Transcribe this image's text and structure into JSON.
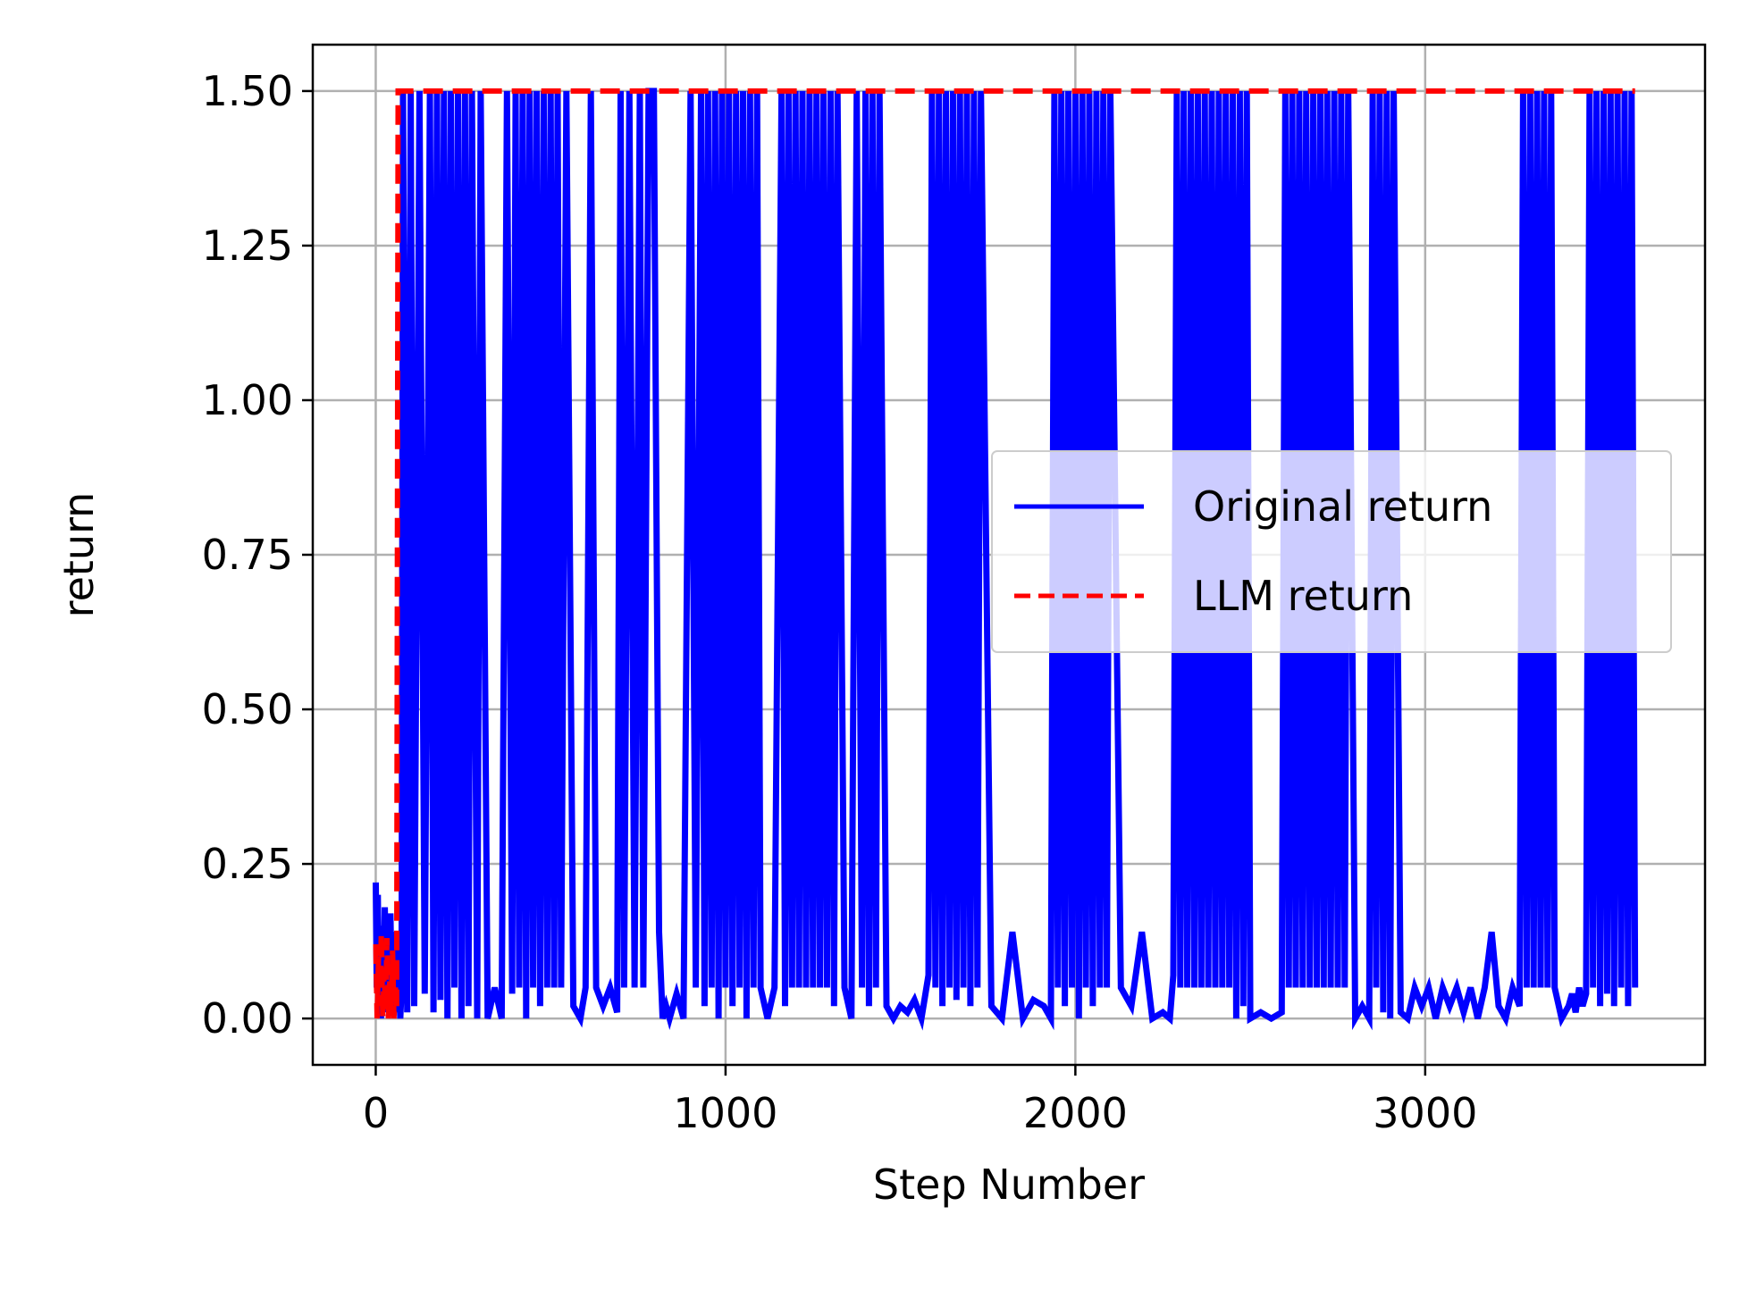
{
  "chart_data": {
    "type": "line",
    "title": "",
    "xlabel": "Step Number",
    "ylabel": "return",
    "xlim": [
      -180,
      3800
    ],
    "ylim": [
      -0.075,
      1.575
    ],
    "xticks": [
      0,
      1000,
      2000,
      3000
    ],
    "xtick_labels": [
      "0",
      "1000",
      "2000",
      "3000"
    ],
    "yticks": [
      0.0,
      0.25,
      0.5,
      0.75,
      1.0,
      1.25,
      1.5
    ],
    "ytick_labels": [
      "0.00",
      "0.25",
      "0.50",
      "0.75",
      "1.00",
      "1.25",
      "1.50"
    ],
    "grid": true,
    "legend_position": "center-right",
    "colors": {
      "original": "#0000ff",
      "llm": "#ff0000",
      "grid": "#b0b0b0"
    },
    "series": [
      {
        "name": "Original return",
        "style": "solid",
        "x": [
          0,
          3,
          6,
          9,
          12,
          15,
          18,
          22,
          26,
          30,
          34,
          38,
          42,
          46,
          50,
          54,
          58,
          62,
          66,
          70,
          74,
          78,
          90,
          100,
          110,
          125,
          140,
          155,
          165,
          175,
          185,
          195,
          205,
          215,
          225,
          235,
          245,
          255,
          265,
          275,
          290,
          300,
          320,
          340,
          360,
          375,
          390,
          400,
          410,
          420,
          430,
          440,
          450,
          460,
          470,
          480,
          490,
          500,
          510,
          520,
          530,
          545,
          565,
          585,
          600,
          615,
          630,
          650,
          670,
          690,
          700,
          710,
          725,
          740,
          755,
          765,
          780,
          795,
          810,
          820,
          830,
          840,
          860,
          880,
          900,
          915,
          930,
          940,
          950,
          960,
          970,
          980,
          990,
          1000,
          1010,
          1020,
          1030,
          1040,
          1050,
          1060,
          1070,
          1080,
          1090,
          1100,
          1120,
          1140,
          1160,
          1170,
          1180,
          1190,
          1200,
          1210,
          1220,
          1230,
          1240,
          1250,
          1260,
          1270,
          1280,
          1290,
          1300,
          1310,
          1320,
          1340,
          1360,
          1375,
          1390,
          1400,
          1410,
          1420,
          1430,
          1440,
          1460,
          1480,
          1500,
          1520,
          1540,
          1560,
          1580,
          1590,
          1600,
          1610,
          1620,
          1630,
          1640,
          1650,
          1660,
          1670,
          1680,
          1690,
          1700,
          1710,
          1720,
          1730,
          1760,
          1790,
          1820,
          1850,
          1880,
          1910,
          1930,
          1940,
          1950,
          1960,
          1970,
          1980,
          1990,
          2000,
          2010,
          2020,
          2030,
          2040,
          2050,
          2060,
          2070,
          2080,
          2090,
          2100,
          2130,
          2160,
          2190,
          2220,
          2250,
          2270,
          2280,
          2290,
          2300,
          2310,
          2320,
          2330,
          2340,
          2350,
          2360,
          2370,
          2380,
          2390,
          2400,
          2410,
          2420,
          2430,
          2440,
          2450,
          2460,
          2470,
          2480,
          2490,
          2500,
          2530,
          2560,
          2590,
          2600,
          2610,
          2620,
          2630,
          2640,
          2650,
          2660,
          2670,
          2680,
          2690,
          2700,
          2710,
          2720,
          2730,
          2740,
          2750,
          2760,
          2770,
          2780,
          2800,
          2820,
          2840,
          2850,
          2860,
          2870,
          2880,
          2890,
          2900,
          2910,
          2930,
          2950,
          2970,
          2990,
          3010,
          3030,
          3050,
          3070,
          3090,
          3110,
          3130,
          3150,
          3170,
          3190,
          3210,
          3230,
          3250,
          3270,
          3280,
          3290,
          3300,
          3310,
          3320,
          3330,
          3340,
          3350,
          3360,
          3370,
          3390,
          3410,
          3420,
          3430,
          3440,
          3450,
          3460,
          3470,
          3480,
          3490,
          3500,
          3510,
          3520,
          3530,
          3540,
          3550,
          3560,
          3570,
          3580,
          3590,
          3600
        ],
        "y": [
          0.22,
          0.05,
          0.2,
          0.02,
          0.15,
          0.0,
          0.1,
          0.03,
          0.18,
          0.01,
          0.12,
          0.04,
          0.17,
          0.02,
          0.1,
          0.01,
          0.14,
          0.03,
          0.08,
          0.0,
          0.05,
          1.5,
          0.01,
          1.5,
          0.02,
          1.5,
          0.04,
          1.5,
          0.01,
          1.5,
          0.03,
          1.5,
          0.0,
          1.5,
          0.05,
          1.5,
          0.0,
          1.5,
          0.02,
          1.5,
          0.0,
          1.5,
          0.0,
          0.05,
          0.0,
          1.5,
          0.04,
          1.5,
          0.05,
          1.5,
          0.0,
          1.5,
          0.05,
          1.5,
          0.02,
          1.5,
          0.05,
          1.5,
          0.05,
          1.5,
          0.05,
          1.5,
          0.02,
          0.0,
          0.05,
          1.5,
          0.05,
          0.02,
          0.05,
          0.01,
          1.5,
          0.05,
          1.5,
          0.05,
          1.5,
          0.05,
          1.5,
          1.5,
          0.14,
          0.0,
          0.02,
          0.0,
          0.04,
          0.0,
          1.5,
          0.05,
          1.5,
          0.02,
          1.5,
          0.05,
          1.5,
          0.0,
          1.5,
          0.05,
          1.5,
          0.02,
          1.5,
          0.05,
          1.5,
          0.0,
          1.5,
          0.05,
          1.5,
          0.05,
          0.0,
          0.05,
          1.5,
          0.02,
          1.5,
          0.05,
          1.5,
          0.05,
          1.5,
          0.05,
          1.5,
          0.05,
          1.5,
          0.05,
          1.5,
          0.05,
          1.5,
          0.02,
          1.5,
          0.05,
          0.0,
          1.5,
          0.05,
          1.5,
          0.02,
          1.5,
          0.05,
          1.5,
          0.02,
          0.0,
          0.02,
          0.01,
          0.03,
          0.0,
          0.07,
          1.5,
          0.05,
          1.5,
          0.02,
          1.5,
          0.05,
          1.5,
          0.03,
          1.5,
          0.05,
          1.5,
          0.02,
          1.5,
          0.05,
          1.5,
          0.02,
          0.0,
          0.14,
          0.0,
          0.03,
          0.02,
          0.0,
          1.5,
          0.05,
          1.5,
          0.02,
          1.5,
          0.05,
          1.5,
          0.0,
          1.5,
          0.05,
          1.5,
          0.02,
          1.5,
          0.05,
          1.5,
          0.05,
          1.5,
          0.05,
          0.02,
          0.14,
          0.0,
          0.01,
          0.0,
          0.07,
          1.5,
          0.05,
          1.5,
          0.05,
          1.5,
          0.05,
          1.5,
          0.05,
          1.5,
          0.05,
          1.5,
          0.05,
          1.5,
          0.05,
          1.5,
          0.05,
          1.5,
          0.0,
          1.5,
          0.02,
          1.5,
          0.0,
          0.01,
          0.0,
          0.01,
          1.5,
          0.05,
          1.5,
          0.05,
          1.5,
          0.05,
          1.5,
          0.05,
          1.5,
          0.05,
          1.5,
          0.05,
          1.5,
          0.05,
          1.5,
          0.05,
          1.5,
          0.05,
          1.5,
          0.0,
          0.02,
          0.0,
          1.5,
          0.05,
          1.5,
          0.01,
          1.5,
          0.0,
          1.5,
          0.01,
          0.0,
          0.05,
          0.02,
          0.05,
          0.0,
          0.05,
          0.02,
          0.05,
          0.01,
          0.05,
          0.0,
          0.05,
          0.14,
          0.02,
          0.0,
          0.05,
          0.02,
          1.5,
          0.05,
          1.5,
          0.05,
          1.5,
          0.05,
          1.5,
          0.05,
          1.5,
          0.05,
          0.0,
          0.02,
          0.04,
          0.01,
          0.05,
          0.02,
          0.04,
          1.5,
          0.05,
          1.5,
          0.02,
          1.5,
          0.04,
          1.5,
          0.02,
          1.5,
          0.05,
          1.5,
          0.02,
          1.5,
          0.05
        ]
      },
      {
        "name": "LLM return",
        "style": "dashed",
        "x": [
          0,
          4,
          8,
          12,
          16,
          20,
          24,
          28,
          32,
          36,
          40,
          44,
          48,
          52,
          56,
          60,
          64,
          3600
        ],
        "y": [
          0.12,
          0.0,
          0.1,
          0.02,
          0.14,
          0.0,
          0.08,
          0.01,
          0.13,
          0.0,
          0.06,
          0.02,
          0.11,
          0.0,
          0.05,
          0.02,
          1.5,
          1.5
        ]
      }
    ]
  }
}
